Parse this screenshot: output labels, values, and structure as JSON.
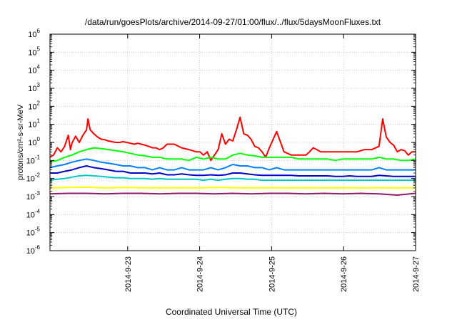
{
  "chart_data": {
    "type": "line",
    "title": "/data/run/goesPlots/archive/2014-09-27/01:00/flux/../flux/5daysMoonFluxes.txt",
    "xlabel": "Coordinated Universal Time (UTC)",
    "ylabel": "protons/cm²-s-sr-MeV",
    "yscale": "log",
    "ylim_exponents": [
      -6,
      6
    ],
    "y_tick_labels": [
      "10-6",
      "10-5",
      "10-4",
      "10-3",
      "10-2",
      "10-1",
      "100",
      "101",
      "102",
      "103",
      "104",
      "105",
      "106"
    ],
    "xlim": [
      "2014-09-22 01:00",
      "2014-09-27 01:00"
    ],
    "x_tick_labels": [
      "2014-9-23",
      "2014-9-24",
      "2014-9-25",
      "2014-9-26",
      "2014-9-27"
    ],
    "grid": true,
    "series": [
      {
        "color": "#ff0000",
        "x": [
          0.0,
          0.05,
          0.1,
          0.15,
          0.2,
          0.25,
          0.28,
          0.3,
          0.35,
          0.4,
          0.45,
          0.5,
          0.52,
          0.55,
          0.6,
          0.65,
          0.7,
          0.75,
          0.8,
          0.85,
          0.9,
          0.95,
          1.0,
          1.05,
          1.1,
          1.15,
          1.2,
          1.25,
          1.3,
          1.35,
          1.4,
          1.45,
          1.5,
          1.55,
          1.6,
          1.7,
          1.8,
          1.9,
          2.0,
          2.05,
          2.1,
          2.15,
          2.2,
          2.25,
          2.3,
          2.35,
          2.4,
          2.45,
          2.5,
          2.55,
          2.6,
          2.65,
          2.7,
          2.75,
          2.8,
          2.85,
          2.9,
          2.95,
          3.0,
          3.1,
          3.2,
          3.3,
          3.4,
          3.5,
          3.55,
          3.6,
          3.65,
          3.7,
          3.75,
          3.8,
          3.85,
          3.9,
          3.95,
          4.0,
          4.1,
          4.2,
          4.3,
          4.4,
          4.5,
          4.55,
          4.6,
          4.65,
          4.7,
          4.75,
          4.8,
          4.85,
          4.9,
          4.95,
          5.0
        ],
        "y": [
          0.15,
          0.2,
          0.5,
          0.3,
          0.6,
          2.5,
          0.4,
          0.9,
          2.2,
          1.0,
          2.5,
          5.0,
          20,
          5.0,
          3.0,
          2.0,
          1.5,
          1.4,
          1.2,
          1.1,
          1.0,
          1.0,
          1.1,
          1.0,
          0.9,
          0.8,
          0.9,
          0.8,
          0.7,
          0.6,
          0.5,
          0.5,
          0.4,
          0.5,
          0.8,
          0.8,
          0.5,
          0.4,
          0.3,
          0.3,
          0.2,
          0.3,
          0.1,
          0.2,
          0.4,
          3.0,
          0.8,
          1.5,
          1.2,
          5.0,
          25,
          3.0,
          2.5,
          1.5,
          0.6,
          0.5,
          0.3,
          0.15,
          0.5,
          4.0,
          0.3,
          0.2,
          0.2,
          0.2,
          0.3,
          0.5,
          0.4,
          0.3,
          0.3,
          0.3,
          0.3,
          0.3,
          0.3,
          0.3,
          0.3,
          0.3,
          0.4,
          0.4,
          0.6,
          20,
          2.0,
          1.0,
          0.7,
          0.3,
          0.4,
          0.35,
          0.2,
          0.3,
          0.3
        ]
      },
      {
        "color": "#00ff00",
        "x": [
          0.0,
          0.1,
          0.2,
          0.3,
          0.4,
          0.5,
          0.6,
          0.7,
          0.8,
          0.9,
          1.0,
          1.1,
          1.2,
          1.3,
          1.4,
          1.5,
          1.6,
          1.7,
          1.8,
          1.9,
          2.0,
          2.1,
          2.2,
          2.3,
          2.4,
          2.5,
          2.6,
          2.7,
          2.8,
          2.9,
          3.0,
          3.1,
          3.2,
          3.3,
          3.4,
          3.5,
          3.6,
          3.7,
          3.8,
          3.9,
          4.0,
          4.1,
          4.2,
          4.3,
          4.4,
          4.5,
          4.6,
          4.7,
          4.8,
          4.9,
          5.0
        ],
        "y": [
          0.08,
          0.1,
          0.15,
          0.2,
          0.3,
          0.4,
          0.5,
          0.45,
          0.4,
          0.35,
          0.3,
          0.25,
          0.2,
          0.18,
          0.15,
          0.15,
          0.12,
          0.12,
          0.12,
          0.1,
          0.15,
          0.12,
          0.15,
          0.12,
          0.12,
          0.2,
          0.25,
          0.2,
          0.18,
          0.15,
          0.15,
          0.15,
          0.15,
          0.15,
          0.12,
          0.12,
          0.12,
          0.12,
          0.12,
          0.1,
          0.12,
          0.12,
          0.12,
          0.12,
          0.12,
          0.15,
          0.12,
          0.12,
          0.1,
          0.1,
          0.12
        ]
      },
      {
        "color": "#0080ff",
        "x": [
          0.0,
          0.1,
          0.2,
          0.3,
          0.4,
          0.5,
          0.6,
          0.7,
          0.8,
          0.9,
          1.0,
          1.1,
          1.2,
          1.3,
          1.4,
          1.5,
          1.6,
          1.7,
          1.8,
          1.9,
          2.0,
          2.1,
          2.2,
          2.3,
          2.4,
          2.5,
          2.6,
          2.7,
          2.8,
          2.9,
          3.0,
          3.1,
          3.2,
          3.3,
          3.4,
          3.5,
          3.6,
          3.7,
          3.8,
          3.9,
          4.0,
          4.1,
          4.2,
          4.3,
          4.4,
          4.5,
          4.6,
          4.7,
          4.8,
          4.9,
          5.0
        ],
        "y": [
          0.04,
          0.05,
          0.06,
          0.08,
          0.1,
          0.12,
          0.1,
          0.08,
          0.07,
          0.06,
          0.05,
          0.05,
          0.04,
          0.04,
          0.03,
          0.04,
          0.03,
          0.03,
          0.04,
          0.03,
          0.03,
          0.03,
          0.04,
          0.03,
          0.04,
          0.06,
          0.05,
          0.05,
          0.04,
          0.04,
          0.03,
          0.04,
          0.03,
          0.03,
          0.03,
          0.03,
          0.03,
          0.03,
          0.03,
          0.03,
          0.03,
          0.03,
          0.03,
          0.03,
          0.03,
          0.04,
          0.03,
          0.03,
          0.03,
          0.03,
          0.03
        ]
      },
      {
        "color": "#0000c8",
        "x": [
          0.0,
          0.1,
          0.2,
          0.3,
          0.4,
          0.5,
          0.6,
          0.7,
          0.8,
          0.9,
          1.0,
          1.1,
          1.2,
          1.3,
          1.4,
          1.5,
          1.6,
          1.7,
          1.8,
          1.9,
          2.0,
          2.1,
          2.2,
          2.3,
          2.4,
          2.5,
          2.6,
          2.7,
          2.8,
          2.9,
          3.0,
          3.1,
          3.2,
          3.3,
          3.4,
          3.5,
          3.6,
          3.7,
          3.8,
          3.9,
          4.0,
          4.1,
          4.2,
          4.3,
          4.4,
          4.5,
          4.6,
          4.7,
          4.8,
          4.9,
          5.0
        ],
        "y": [
          0.02,
          0.02,
          0.025,
          0.03,
          0.04,
          0.05,
          0.04,
          0.035,
          0.03,
          0.025,
          0.025,
          0.02,
          0.02,
          0.02,
          0.018,
          0.02,
          0.016,
          0.016,
          0.018,
          0.016,
          0.015,
          0.015,
          0.016,
          0.015,
          0.016,
          0.02,
          0.02,
          0.018,
          0.016,
          0.015,
          0.015,
          0.015,
          0.015,
          0.015,
          0.014,
          0.014,
          0.014,
          0.014,
          0.014,
          0.013,
          0.013,
          0.014,
          0.013,
          0.013,
          0.013,
          0.015,
          0.014,
          0.013,
          0.013,
          0.013,
          0.013
        ]
      },
      {
        "color": "#00c8c8",
        "x": [
          0.0,
          0.1,
          0.2,
          0.3,
          0.4,
          0.5,
          0.6,
          0.7,
          0.8,
          0.9,
          1.0,
          1.1,
          1.2,
          1.3,
          1.4,
          1.5,
          1.6,
          1.7,
          1.8,
          1.9,
          2.0,
          2.1,
          2.2,
          2.3,
          2.4,
          2.5,
          2.6,
          2.7,
          2.8,
          2.9,
          3.0,
          3.1,
          3.2,
          3.3,
          3.4,
          3.5,
          3.6,
          3.7,
          3.8,
          3.9,
          4.0,
          4.1,
          4.2,
          4.3,
          4.4,
          4.5,
          4.6,
          4.7,
          4.8,
          4.9,
          5.0
        ],
        "y": [
          0.008,
          0.009,
          0.01,
          0.012,
          0.014,
          0.015,
          0.014,
          0.013,
          0.012,
          0.011,
          0.011,
          0.01,
          0.01,
          0.01,
          0.009,
          0.01,
          0.009,
          0.009,
          0.009,
          0.009,
          0.009,
          0.008,
          0.009,
          0.008,
          0.009,
          0.01,
          0.01,
          0.009,
          0.009,
          0.008,
          0.008,
          0.008,
          0.008,
          0.008,
          0.008,
          0.008,
          0.008,
          0.008,
          0.008,
          0.008,
          0.008,
          0.008,
          0.008,
          0.008,
          0.008,
          0.008,
          0.008,
          0.008,
          0.008,
          0.008,
          0.008
        ]
      },
      {
        "color": "#ffff00",
        "x": [
          0.0,
          0.25,
          0.5,
          0.75,
          1.0,
          1.25,
          1.5,
          1.75,
          2.0,
          2.25,
          2.5,
          2.75,
          3.0,
          3.25,
          3.5,
          3.75,
          4.0,
          4.25,
          4.5,
          4.75,
          5.0
        ],
        "y": [
          0.003,
          0.0032,
          0.0033,
          0.003,
          0.0032,
          0.0031,
          0.003,
          0.0031,
          0.003,
          0.0032,
          0.0031,
          0.003,
          0.0031,
          0.003,
          0.0031,
          0.003,
          0.0031,
          0.003,
          0.0031,
          0.003,
          0.003
        ]
      },
      {
        "color": "#8b1a6b",
        "x": [
          0.0,
          0.25,
          0.5,
          0.75,
          1.0,
          1.25,
          1.5,
          1.75,
          2.0,
          2.25,
          2.5,
          2.75,
          3.0,
          3.25,
          3.5,
          3.75,
          4.0,
          4.25,
          4.5,
          4.75,
          5.0
        ],
        "y": [
          0.0014,
          0.0015,
          0.0015,
          0.0014,
          0.0015,
          0.0015,
          0.0014,
          0.0015,
          0.0015,
          0.0014,
          0.0015,
          0.0014,
          0.0015,
          0.0015,
          0.0014,
          0.0015,
          0.0014,
          0.0015,
          0.0014,
          0.0012,
          0.0015
        ]
      }
    ]
  }
}
